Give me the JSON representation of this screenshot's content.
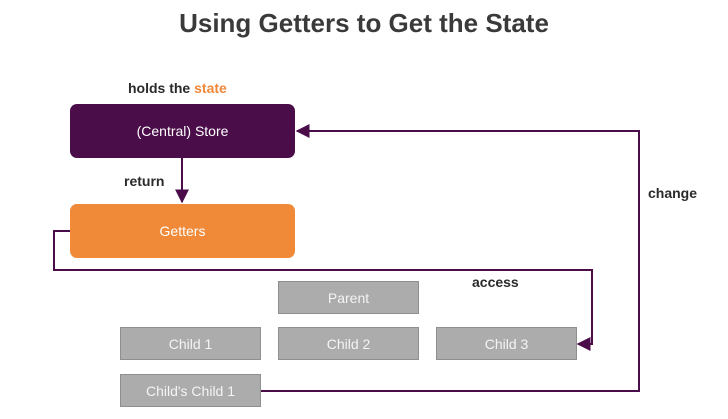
{
  "title": "Using Getters to Get the State",
  "labels": {
    "holds_prefix": "holds the",
    "holds_state": "state",
    "return": "return",
    "change": "change",
    "access": "access"
  },
  "nodes": {
    "store": "(Central) Store",
    "getters": "Getters",
    "parent": "Parent",
    "child1": "Child 1",
    "child2": "Child 2",
    "child3": "Child 3",
    "childs_child1": "Child's Child 1"
  },
  "colors": {
    "store": "#4a0d4a",
    "getters": "#f08a38",
    "component": "#acacac",
    "wire": "#4a0d4a"
  }
}
